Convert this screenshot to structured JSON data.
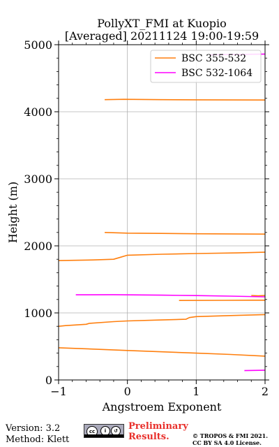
{
  "chart_data": {
    "type": "line",
    "title": "PollyXT_FMI at Kuopio",
    "subtitle": "[Averaged] 20211124 19:00-19:59",
    "xlabel": "Angstroem Exponent",
    "ylabel": "Height (m)",
    "xlim": [
      -1,
      2
    ],
    "ylim": [
      0,
      5000
    ],
    "xticks": [
      "−1",
      "0",
      "1",
      "2"
    ],
    "yticks": [
      "0",
      "1000",
      "2000",
      "3000",
      "4000",
      "5000"
    ],
    "grid": true,
    "legend_position": "top-right",
    "series": [
      {
        "name": "BSC 355-532",
        "color": "#ff7f0e",
        "segments": [
          [
            [
              -1.0,
              480
            ],
            [
              -0.5,
              460
            ],
            [
              0.0,
              440
            ],
            [
              0.5,
              420
            ],
            [
              1.0,
              400
            ],
            [
              1.5,
              380
            ],
            [
              2.0,
              355
            ]
          ],
          [
            [
              -1.0,
              800
            ],
            [
              -0.9,
              810
            ],
            [
              -0.6,
              830
            ],
            [
              -0.55,
              845
            ],
            [
              -0.2,
              870
            ],
            [
              0.0,
              880
            ],
            [
              0.5,
              895
            ],
            [
              0.85,
              905
            ],
            [
              0.9,
              930
            ],
            [
              1.0,
              945
            ],
            [
              1.5,
              960
            ],
            [
              2.0,
              975
            ]
          ],
          [
            [
              0.75,
              1185
            ],
            [
              1.4,
              1188
            ],
            [
              1.8,
              1190
            ],
            [
              2.0,
              1190
            ]
          ],
          [
            [
              1.8,
              1260
            ],
            [
              1.9,
              1255
            ],
            [
              2.0,
              1260
            ]
          ],
          [
            [
              -1.0,
              1780
            ],
            [
              -0.5,
              1790
            ],
            [
              -0.2,
              1800
            ],
            [
              -0.1,
              1830
            ],
            [
              0.0,
              1860
            ],
            [
              0.5,
              1875
            ],
            [
              1.0,
              1885
            ],
            [
              1.6,
              1895
            ],
            [
              2.0,
              1905
            ]
          ],
          [
            [
              -0.33,
              2200
            ],
            [
              0.0,
              2190
            ],
            [
              0.5,
              2185
            ],
            [
              1.0,
              2180
            ],
            [
              1.5,
              2178
            ],
            [
              2.0,
              2175
            ]
          ],
          [
            [
              -0.33,
              4180
            ],
            [
              -0.05,
              4185
            ],
            [
              0.5,
              4180
            ],
            [
              1.0,
              4178
            ],
            [
              2.0,
              4175
            ]
          ]
        ]
      },
      {
        "name": "BSC 532-1064",
        "color": "#ff00ff",
        "segments": [
          [
            [
              1.7,
              140
            ],
            [
              2.0,
              145
            ]
          ],
          [
            [
              -0.75,
              1270
            ],
            [
              -0.2,
              1272
            ],
            [
              0.5,
              1265
            ],
            [
              1.0,
              1258
            ],
            [
              1.5,
              1250
            ],
            [
              2.0,
              1240
            ]
          ],
          [
            [
              1.2,
              4850
            ],
            [
              1.6,
              4855
            ],
            [
              2.0,
              4860
            ]
          ]
        ]
      }
    ]
  },
  "footer": {
    "version": "Version: 3.2",
    "method": "Method: Klett",
    "preliminary_line1": "Preliminary",
    "preliminary_line2": "Results.",
    "copyright_line1": "© TROPOS & FMI 2021.",
    "copyright_line2": "CC BY SA 4.0 License."
  }
}
